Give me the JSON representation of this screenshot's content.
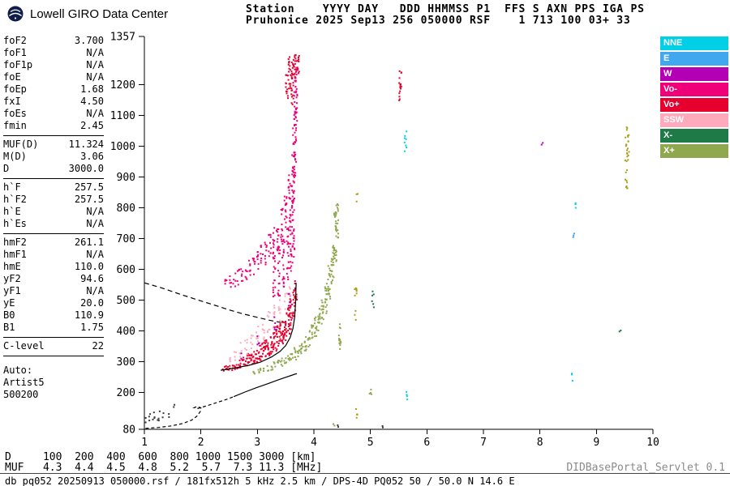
{
  "header": {
    "brand": "Lowell GIRO Data Center",
    "station_line1": "Station    YYYY DAY   DDD HHMMSS P1  FFS S AXN PPS IGA PS",
    "station_line2": "Pruhonice 2025 Sep13 256 050000 RSF    1 713 100 03+ 33"
  },
  "params": {
    "groups": [
      {
        "rows": [
          [
            "foF2",
            "3.700"
          ],
          [
            "foF1",
            "N/A"
          ],
          [
            "foF1p",
            "N/A"
          ],
          [
            "foE",
            "N/A"
          ],
          [
            "foEp",
            "1.68"
          ],
          [
            "fxI",
            "4.50"
          ],
          [
            "foEs",
            "N/A"
          ],
          [
            "fmin",
            "2.45"
          ]
        ]
      },
      {
        "rows": [
          [
            "MUF(D)",
            "11.324"
          ],
          [
            "M(D)",
            "3.06"
          ],
          [
            "D",
            "3000.0"
          ]
        ]
      },
      {
        "rows": [
          [
            "h`F",
            "257.5"
          ],
          [
            "h`F2",
            "257.5"
          ],
          [
            "h`E",
            "N/A"
          ],
          [
            "h`Es",
            "N/A"
          ]
        ]
      },
      {
        "rows": [
          [
            "hmF2",
            "261.1"
          ],
          [
            "hmF1",
            "N/A"
          ],
          [
            "hmE",
            "110.0"
          ],
          [
            "yF2",
            "94.6"
          ],
          [
            "yF1",
            "N/A"
          ],
          [
            "yE",
            "20.0"
          ],
          [
            "B0",
            "110.9"
          ],
          [
            "B1",
            "1.75"
          ]
        ]
      },
      {
        "rows": [
          [
            "C-level",
            "22"
          ]
        ]
      }
    ],
    "auto_label": "Auto:",
    "auto_lines": [
      "Artist5",
      "500200"
    ]
  },
  "legend": {
    "items": [
      {
        "id": "nne",
        "label": "NNE",
        "color": "#00cfe6"
      },
      {
        "id": "e",
        "label": "E",
        "color": "#41a8f0"
      },
      {
        "id": "w",
        "label": "W",
        "color": "#b400b4"
      },
      {
        "id": "vo-minus",
        "label": "Vo-",
        "color": "#f00078"
      },
      {
        "id": "vo-plus",
        "label": "Vo+",
        "color": "#e6002e"
      },
      {
        "id": "ssw",
        "label": "SSW",
        "color": "#ffaabc"
      },
      {
        "id": "x-minus",
        "label": "X-",
        "color": "#1e7a46"
      },
      {
        "id": "x-plus",
        "label": "X+",
        "color": "#8fa84e"
      }
    ]
  },
  "footer": {
    "d_row_text": "D     100  200  400  600  800 1000 1500 3000 [km]",
    "muf_row_text": "MUF   4.3  4.4  4.5  4.8  5.2  5.7  7.3 11.3 [MHz]",
    "muf_table": {
      "distances_km": [
        100,
        200,
        400,
        600,
        800,
        1000,
        1500,
        3000
      ],
      "muf_mhz": [
        4.3,
        4.4,
        4.5,
        4.8,
        5.2,
        5.7,
        7.3,
        11.3
      ]
    },
    "info_line": "db pq052 20250913 050000.rsf / 181fx512h 5 kHz 2.5 km / DPS-4D PQ052 50 / 50.0 N 14.6 E",
    "servlet": "DIDBasePortal_Servlet 0.1"
  },
  "chart_data": {
    "type": "scatter",
    "title": "",
    "xlabel": "[MHz]",
    "ylabel": "[km]",
    "xlim": [
      1,
      10
    ],
    "ylim": [
      80,
      1357
    ],
    "x_ticks": [
      1,
      2,
      3,
      4,
      5,
      6,
      7,
      8,
      9,
      10
    ],
    "y_ticks": [
      80,
      200,
      300,
      400,
      500,
      600,
      700,
      800,
      900,
      1000,
      1100,
      1200,
      1357
    ],
    "grid": false,
    "legend_position": "right",
    "series": [
      {
        "name": "o-trace-first-order",
        "legend": "Vo+",
        "color": "#e6002e",
        "step": 6,
        "strips": [
          [
            2.4,
            268,
            288
          ],
          [
            2.45,
            269,
            291
          ],
          [
            2.5,
            270,
            294
          ],
          [
            2.55,
            271,
            297
          ],
          [
            2.6,
            273,
            301
          ],
          [
            2.65,
            275,
            305
          ],
          [
            2.7,
            277,
            310
          ],
          [
            2.75,
            280,
            315
          ],
          [
            2.8,
            283,
            321
          ],
          [
            2.85,
            286,
            327
          ],
          [
            2.9,
            289,
            334
          ],
          [
            2.95,
            293,
            341
          ],
          [
            3.0,
            297,
            349
          ],
          [
            3.05,
            301,
            357
          ],
          [
            3.1,
            305,
            365
          ],
          [
            3.15,
            310,
            374
          ],
          [
            3.2,
            315,
            383
          ],
          [
            3.25,
            321,
            393
          ],
          [
            3.3,
            327,
            404
          ],
          [
            3.35,
            334,
            416
          ],
          [
            3.4,
            342,
            430
          ],
          [
            3.45,
            352,
            446
          ],
          [
            3.5,
            365,
            465
          ],
          [
            3.55,
            382,
            488
          ],
          [
            3.6,
            405,
            515
          ],
          [
            3.65,
            445,
            545
          ],
          [
            3.68,
            500,
            562
          ],
          [
            3.52,
            1155,
            1235
          ],
          [
            3.57,
            1185,
            1292
          ],
          [
            3.62,
            1128,
            1282
          ],
          [
            3.67,
            1210,
            1300
          ],
          [
            3.72,
            1235,
            1300
          ],
          [
            5.53,
            1148,
            1252
          ]
        ]
      },
      {
        "name": "o-trace-second-order",
        "legend": "Vo-",
        "color": "#f00078",
        "step": 9,
        "strips": [
          [
            2.45,
            532,
            572
          ],
          [
            2.52,
            538,
            580
          ],
          [
            2.59,
            544,
            590
          ],
          [
            2.66,
            550,
            600
          ],
          [
            2.73,
            557,
            610
          ],
          [
            2.8,
            565,
            621
          ],
          [
            2.87,
            573,
            633
          ],
          [
            2.94,
            582,
            646
          ],
          [
            3.01,
            592,
            661
          ],
          [
            3.08,
            602,
            677
          ],
          [
            3.15,
            614,
            695
          ],
          [
            3.22,
            627,
            715
          ],
          [
            3.29,
            643,
            739
          ],
          [
            3.36,
            661,
            767
          ],
          [
            3.43,
            683,
            801
          ],
          [
            3.5,
            711,
            845
          ],
          [
            3.57,
            749,
            906
          ],
          [
            3.62,
            799,
            980
          ],
          [
            3.65,
            858,
            1070
          ],
          [
            3.67,
            948,
            1180
          ],
          [
            3.685,
            1045,
            1295
          ],
          [
            3.3,
            490,
            640
          ],
          [
            3.38,
            510,
            680
          ],
          [
            3.46,
            530,
            710
          ],
          [
            3.54,
            560,
            745
          ],
          [
            3.6,
            590,
            795
          ],
          [
            3.64,
            640,
            855
          ]
        ]
      },
      {
        "name": "o-trace-spread",
        "legend": "SSW",
        "color": "#ffaabc",
        "step": 10,
        "strips": [
          [
            2.5,
            296,
            332
          ],
          [
            2.6,
            303,
            346
          ],
          [
            2.7,
            313,
            362
          ],
          [
            2.8,
            324,
            380
          ],
          [
            2.9,
            337,
            400
          ],
          [
            3.0,
            352,
            421
          ],
          [
            3.1,
            368,
            442
          ],
          [
            3.2,
            386,
            464
          ],
          [
            3.3,
            407,
            486
          ],
          [
            3.4,
            433,
            507
          ],
          [
            3.5,
            468,
            522
          ],
          [
            3.58,
            505,
            548
          ]
        ]
      },
      {
        "name": "w-scatter",
        "legend": "W",
        "color": "#b400b4",
        "step": 12,
        "strips": [
          [
            2.72,
            300,
            328
          ],
          [
            3.02,
            345,
            395
          ],
          [
            3.32,
            398,
            452
          ],
          [
            3.56,
            472,
            522
          ],
          [
            8.05,
            990,
            1012
          ]
        ]
      },
      {
        "name": "x-trace",
        "legend": "X+",
        "color": "#8fa84e",
        "step": 6,
        "strips": [
          [
            2.95,
            260,
            275
          ],
          [
            3.01,
            262,
            278
          ],
          [
            3.07,
            264,
            281
          ],
          [
            3.13,
            266,
            285
          ],
          [
            3.19,
            269,
            289
          ],
          [
            3.25,
            272,
            294
          ],
          [
            3.31,
            275,
            299
          ],
          [
            3.37,
            279,
            305
          ],
          [
            3.43,
            283,
            311
          ],
          [
            3.49,
            288,
            318
          ],
          [
            3.55,
            293,
            326
          ],
          [
            3.61,
            299,
            335
          ],
          [
            3.67,
            306,
            345
          ],
          [
            3.73,
            314,
            356
          ],
          [
            3.79,
            323,
            369
          ],
          [
            3.85,
            333,
            384
          ],
          [
            3.91,
            345,
            401
          ],
          [
            3.97,
            359,
            421
          ],
          [
            4.03,
            376,
            445
          ],
          [
            4.09,
            397,
            474
          ],
          [
            4.15,
            423,
            510
          ],
          [
            4.21,
            455,
            555
          ],
          [
            4.27,
            497,
            612
          ],
          [
            4.33,
            552,
            690
          ],
          [
            4.38,
            625,
            790
          ],
          [
            4.41,
            700,
            815
          ],
          [
            4.46,
            340,
            425
          ],
          [
            5.0,
            193,
            214
          ],
          [
            4.36,
            85,
            99
          ]
        ]
      },
      {
        "name": "x-scatter-dark",
        "legend": "X-",
        "color": "#1e7a46",
        "step": 10,
        "strips": [
          [
            5.05,
            476,
            532
          ],
          [
            9.42,
            390,
            412
          ]
        ]
      },
      {
        "name": "nne-scatter",
        "legend": "NNE",
        "color": "#00cfe6",
        "step": 9,
        "strips": [
          [
            5.62,
            983,
            1058
          ],
          [
            5.66,
            173,
            205
          ],
          [
            8.58,
            234,
            262
          ],
          [
            8.64,
            794,
            818
          ]
        ]
      },
      {
        "name": "e-scatter",
        "legend": "E",
        "color": "#41a8f0",
        "step": 8,
        "strips": [
          [
            8.6,
            694,
            718
          ]
        ]
      },
      {
        "name": "interference-olive",
        "legend": "",
        "color": "#a8a018",
        "step": 11,
        "strips": [
          [
            4.74,
            428,
            540
          ],
          [
            4.76,
            818,
            856
          ],
          [
            4.75,
            92,
            146
          ],
          [
            9.53,
            858,
            1065
          ],
          [
            9.56,
            910,
            1040
          ]
        ]
      },
      {
        "name": "noise-dark",
        "legend": "",
        "color": "#3a3a3a",
        "step": 9,
        "strips": [
          [
            1.04,
            96,
            118
          ],
          [
            1.1,
            100,
            130
          ],
          [
            1.17,
            104,
            138
          ],
          [
            1.25,
            108,
            140
          ],
          [
            1.33,
            112,
            134
          ],
          [
            1.45,
            118,
            130
          ],
          [
            1.52,
            150,
            168
          ],
          [
            4.43,
            84,
            96
          ],
          [
            5.2,
            83,
            92
          ]
        ]
      }
    ],
    "profile_lines": [
      {
        "name": "transmission-curve",
        "style": "dashed",
        "dash": "6,4",
        "points": [
          [
            1.0,
            556
          ],
          [
            1.3,
            540
          ],
          [
            1.6,
            521
          ],
          [
            1.9,
            503
          ],
          [
            2.2,
            486
          ],
          [
            2.5,
            468
          ],
          [
            2.75,
            455
          ],
          [
            3.0,
            444
          ],
          [
            3.2,
            435
          ],
          [
            3.42,
            427
          ]
        ]
      },
      {
        "name": "o-trace-fit",
        "style": "solid",
        "dash": "",
        "points": [
          [
            2.35,
            272
          ],
          [
            2.6,
            279
          ],
          [
            2.85,
            288
          ],
          [
            3.05,
            298
          ],
          [
            3.25,
            315
          ],
          [
            3.4,
            333
          ],
          [
            3.5,
            352
          ],
          [
            3.58,
            378
          ],
          [
            3.63,
            408
          ],
          [
            3.66,
            445
          ],
          [
            3.675,
            490
          ],
          [
            3.682,
            530
          ],
          [
            3.685,
            556
          ]
        ]
      },
      {
        "name": "profile-model",
        "style": "dashed",
        "dash": "4,3",
        "points": [
          [
            1.02,
            83
          ],
          [
            1.25,
            86
          ],
          [
            1.48,
            91
          ],
          [
            1.68,
            99
          ],
          [
            1.84,
            110
          ],
          [
            1.93,
            123
          ],
          [
            1.99,
            138
          ],
          [
            2.0,
            150
          ],
          [
            1.93,
            154
          ],
          [
            1.88,
            150
          ],
          [
            1.95,
            148
          ],
          [
            2.08,
            155
          ],
          [
            2.25,
            165
          ],
          [
            2.45,
            177
          ],
          [
            2.58,
            186
          ]
        ]
      },
      {
        "name": "profile",
        "style": "solid",
        "dash": "",
        "points": [
          [
            2.58,
            186
          ],
          [
            2.78,
            201
          ],
          [
            2.98,
            215
          ],
          [
            3.18,
            228
          ],
          [
            3.36,
            240
          ],
          [
            3.5,
            249
          ],
          [
            3.6,
            255
          ],
          [
            3.66,
            259
          ],
          [
            3.7,
            261
          ]
        ]
      }
    ]
  }
}
